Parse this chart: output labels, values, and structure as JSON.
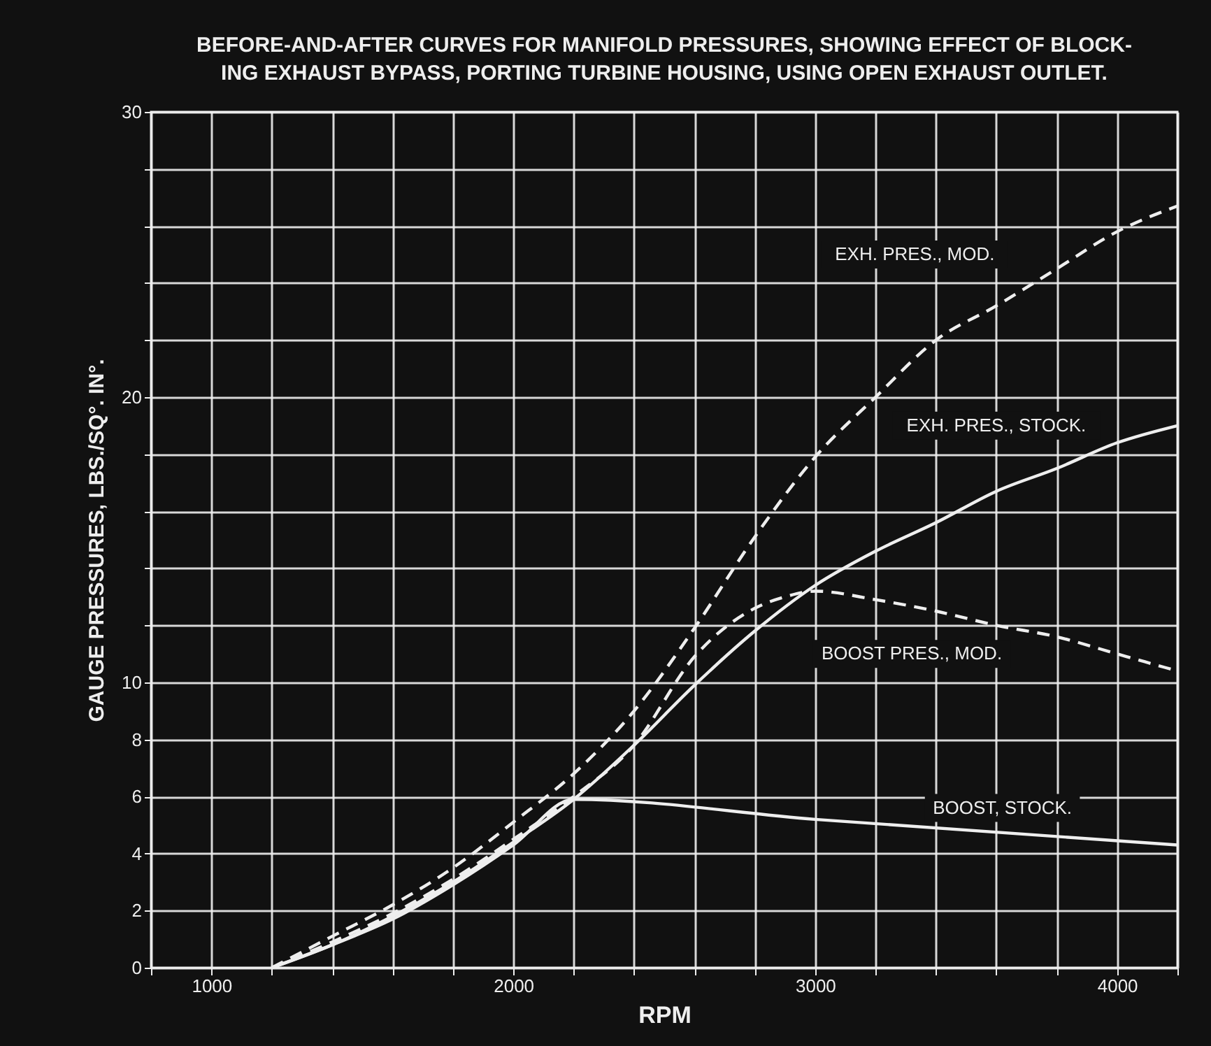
{
  "chart_data": {
    "type": "line",
    "title": "BEFORE-AND-AFTER CURVES FOR MANIFOLD PRESSURES, SHOWING EFFECT OF BLOCK-ING EXHAUST BYPASS, PORTING TURBINE HOUSING, USING OPEN EXHAUST OUTLET.",
    "xlabel": "RPM",
    "ylabel": "GAUGE PRESSURES, LBS./SQ°. IN°.",
    "xlim": [
      800,
      4200
    ],
    "ylim": [
      0,
      30
    ],
    "xticks": [
      {
        "value": 800,
        "label": null
      },
      1000,
      {
        "value": 1200,
        "label": null
      },
      {
        "value": 1400,
        "label": null
      },
      {
        "value": 1600,
        "label": null
      },
      {
        "value": 1800,
        "label": null
      },
      2000,
      {
        "value": 2200,
        "label": null
      },
      {
        "value": 2400,
        "label": null
      },
      {
        "value": 2600,
        "label": null
      },
      {
        "value": 2800,
        "label": null
      },
      3000,
      {
        "value": 3200,
        "label": null
      },
      {
        "value": 3400,
        "label": null
      },
      {
        "value": 3600,
        "label": null
      },
      {
        "value": 3800,
        "label": null
      },
      4000,
      {
        "value": 4200,
        "label": null
      }
    ],
    "yticks": [
      0,
      2,
      4,
      6,
      8,
      10,
      {
        "value": 12,
        "label": null
      },
      {
        "value": 14,
        "label": null
      },
      {
        "value": 16,
        "label": null
      },
      {
        "value": 18,
        "label": null
      },
      20,
      {
        "value": 22,
        "label": null
      },
      {
        "value": 24,
        "label": null
      },
      {
        "value": 26,
        "label": null
      },
      {
        "value": 28,
        "label": null
      },
      30
    ],
    "grid": true,
    "marker": "none",
    "series": [
      {
        "name": "EXH. PRES., MOD.",
        "color": "#eeeeee",
        "line_style": "dashed",
        "x": [
          1200,
          1400,
          1600,
          1800,
          2000,
          2200,
          2400,
          2600,
          2800,
          3000,
          3200,
          3400,
          3600,
          3800,
          4000,
          4200
        ],
        "values": [
          0,
          1.1,
          2.2,
          3.5,
          5.1,
          6.8,
          9.0,
          11.9,
          15.1,
          17.9,
          20.0,
          22.0,
          23.2,
          24.5,
          25.8,
          26.7
        ]
      },
      {
        "name": "EXH. PRES., STOCK.",
        "color": "#eeeeee",
        "line_style": "solid",
        "x": [
          1200,
          1400,
          1600,
          1800,
          2000,
          2200,
          2400,
          2600,
          2800,
          3000,
          3200,
          3400,
          3600,
          3800,
          4000,
          4200
        ],
        "values": [
          0,
          0.8,
          1.8,
          3.0,
          4.4,
          5.9,
          7.8,
          9.9,
          11.8,
          13.4,
          14.6,
          15.6,
          16.7,
          17.5,
          18.4,
          19.0
        ]
      },
      {
        "name": "BOOST PRES., MOD.",
        "color": "#eeeeee",
        "line_style": "dashed",
        "x": [
          1200,
          1400,
          1600,
          1800,
          2000,
          2200,
          2400,
          2600,
          2800,
          2900,
          3000,
          3200,
          3400,
          3600,
          3800,
          4000,
          4200
        ],
        "values": [
          0,
          0.9,
          1.9,
          3.1,
          4.5,
          6.0,
          7.8,
          10.9,
          12.6,
          13.0,
          13.2,
          12.9,
          12.5,
          12.0,
          11.6,
          11.0,
          10.4
        ]
      },
      {
        "name": "BOOST, STOCK.",
        "color": "#eeeeee",
        "line_style": "solid",
        "x": [
          1200,
          1400,
          1600,
          1800,
          2000,
          2200,
          3000,
          4200
        ],
        "values": [
          0,
          0.8,
          1.7,
          2.9,
          4.3,
          5.9,
          5.2,
          4.3
        ]
      }
    ]
  }
}
